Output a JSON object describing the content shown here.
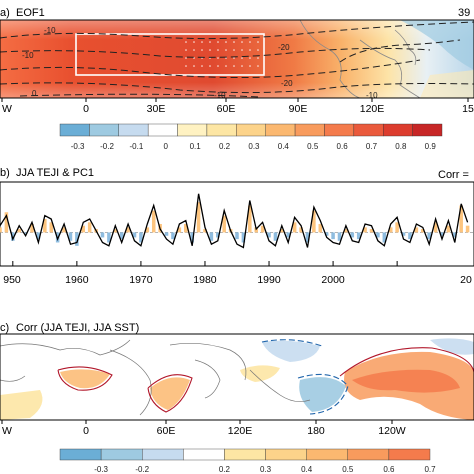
{
  "chart_data": [
    {
      "type": "heatmap",
      "panel_label": "a)",
      "title": "EOF1",
      "corner_text": "39",
      "x_tick_labels": [
        "W",
        "0",
        "30E",
        "60E",
        "90E",
        "120E",
        "15"
      ],
      "contour_labels": [
        "-10",
        "-10",
        "-20",
        "-20",
        "-10",
        "0",
        "-10"
      ],
      "colorbar": {
        "tick_labels": [
          "-0.3",
          "-0.2",
          "-0.1",
          "0",
          "0.1",
          "0.2",
          "0.3",
          "0.4",
          "0.5",
          "0.6",
          "0.7",
          "0.8",
          "0.9"
        ],
        "colors": [
          "#6baed6",
          "#9ecae1",
          "#c6dbef",
          "#ffffff",
          "#fff2c2",
          "#fde6a4",
          "#fcd38a",
          "#fbb870",
          "#f89b5d",
          "#f47b4c",
          "#ea5a3c",
          "#dc3c2e",
          "#c72626"
        ]
      }
    },
    {
      "type": "bar",
      "panel_label": "b)",
      "title": "JJA TEJI & PC1",
      "corner_text": "Corr =",
      "x_tick_labels": [
        "950",
        "1960",
        "1970",
        "1980",
        "1990",
        "2000",
        "20"
      ],
      "xlim": [
        1948,
        2022
      ],
      "ylim": [
        -2,
        3
      ],
      "series": [
        {
          "name": "JJA TEJI",
          "x": [
            1948,
            1949,
            1950,
            1951,
            1952,
            1953,
            1954,
            1955,
            1956,
            1957,
            1958,
            1959,
            1960,
            1961,
            1962,
            1963,
            1964,
            1965,
            1966,
            1967,
            1968,
            1969,
            1970,
            1971,
            1972,
            1973,
            1974,
            1975,
            1976,
            1977,
            1978,
            1979,
            1980,
            1981,
            1982,
            1983,
            1984,
            1985,
            1986,
            1987,
            1988,
            1989,
            1990,
            1991,
            1992,
            1993,
            1994,
            1995,
            1996,
            1997,
            1998,
            1999,
            2000,
            2001,
            2002,
            2003,
            2004,
            2005,
            2006,
            2007,
            2008,
            2009,
            2010,
            2011,
            2012,
            2013,
            2014,
            2015,
            2016,
            2017,
            2018,
            2019,
            2020,
            2021
          ],
          "values": [
            0.3,
            1.2,
            -0.5,
            0.2,
            -0.1,
            0.5,
            -0.4,
            0.8,
            0.6,
            -0.6,
            0.3,
            -0.5,
            -0.8,
            0.4,
            0.6,
            0.2,
            -0.3,
            -0.6,
            0.2,
            -0.4,
            0.3,
            -0.3,
            -0.6,
            0.3,
            1.3,
            0.5,
            -0.2,
            -0.4,
            0.3,
            0.5,
            -0.6,
            1.8,
            0.2,
            -0.5,
            -0.3,
            1.0,
            0.2,
            -0.4,
            -0.6,
            1.6,
            0.3,
            0.4,
            -0.3,
            -0.5,
            0.2,
            -0.3,
            0.6,
            0.3,
            -0.6,
            1.3,
            0.5,
            -0.2,
            -0.4,
            -0.5,
            0.2,
            -0.3,
            -0.4,
            0.3,
            0.2,
            -0.3,
            -0.6,
            0.3,
            0.6,
            -0.2,
            -0.4,
            0.3,
            0.2,
            -0.4,
            0.6,
            -0.2,
            0.4,
            -0.3,
            1.6,
            0.4
          ]
        },
        {
          "name": "PC1",
          "x": [
            1948,
            1949,
            1950,
            1951,
            1952,
            1953,
            1954,
            1955,
            1956,
            1957,
            1958,
            1959,
            1960,
            1961,
            1962,
            1963,
            1964,
            1965,
            1966,
            1967,
            1968,
            1969,
            1970,
            1971,
            1972,
            1973,
            1974,
            1975,
            1976,
            1977,
            1978,
            1979,
            1980,
            1981,
            1982,
            1983,
            1984,
            1985,
            1986,
            1987,
            1988,
            1989,
            1990,
            1991,
            1992,
            1993,
            1994,
            1995,
            1996,
            1997,
            1998,
            1999,
            2000,
            2001,
            2002,
            2003,
            2004,
            2005,
            2006,
            2007,
            2008,
            2009,
            2010,
            2011,
            2012,
            2013,
            2014,
            2015,
            2016,
            2017,
            2018,
            2019,
            2020,
            2021
          ],
          "values": [
            0.4,
            1.0,
            -0.4,
            0.4,
            -0.2,
            0.6,
            -0.6,
            1.0,
            0.8,
            -0.4,
            0.5,
            -0.7,
            -0.6,
            0.6,
            0.8,
            0.1,
            -0.6,
            -0.8,
            0.4,
            -0.6,
            0.5,
            -0.5,
            -0.8,
            0.5,
            1.6,
            0.2,
            -0.4,
            -0.7,
            0.5,
            0.7,
            -0.8,
            2.3,
            0.3,
            -0.7,
            -0.5,
            1.3,
            0.1,
            -0.7,
            -0.9,
            1.9,
            0.2,
            0.6,
            -0.5,
            -0.8,
            0.4,
            -0.6,
            0.9,
            0.4,
            -0.9,
            1.5,
            0.7,
            -0.3,
            -0.6,
            -0.7,
            0.4,
            -0.5,
            -0.6,
            0.5,
            0.4,
            -0.5,
            -0.8,
            0.5,
            0.9,
            -0.4,
            -0.6,
            0.5,
            0.3,
            -0.7,
            0.8,
            -0.4,
            0.7,
            -0.6,
            1.7,
            0.6
          ]
        }
      ]
    },
    {
      "type": "heatmap",
      "panel_label": "c)",
      "title": "Corr (JJA TEJI, JJA SST)",
      "x_tick_labels": [
        "W",
        "0",
        "60E",
        "120E",
        "180",
        "120W"
      ],
      "colorbar": {
        "tick_labels": [
          "-0.3",
          "-0.2",
          "0.2",
          "0.3",
          "0.4",
          "0.5",
          "0.6",
          "0.7"
        ],
        "colors": [
          "#6baed6",
          "#9ecae1",
          "#c6dbef",
          "#ffffff",
          "#fde6a4",
          "#fcd38a",
          "#fbb870",
          "#f89b5d",
          "#f47b4c"
        ]
      }
    }
  ]
}
